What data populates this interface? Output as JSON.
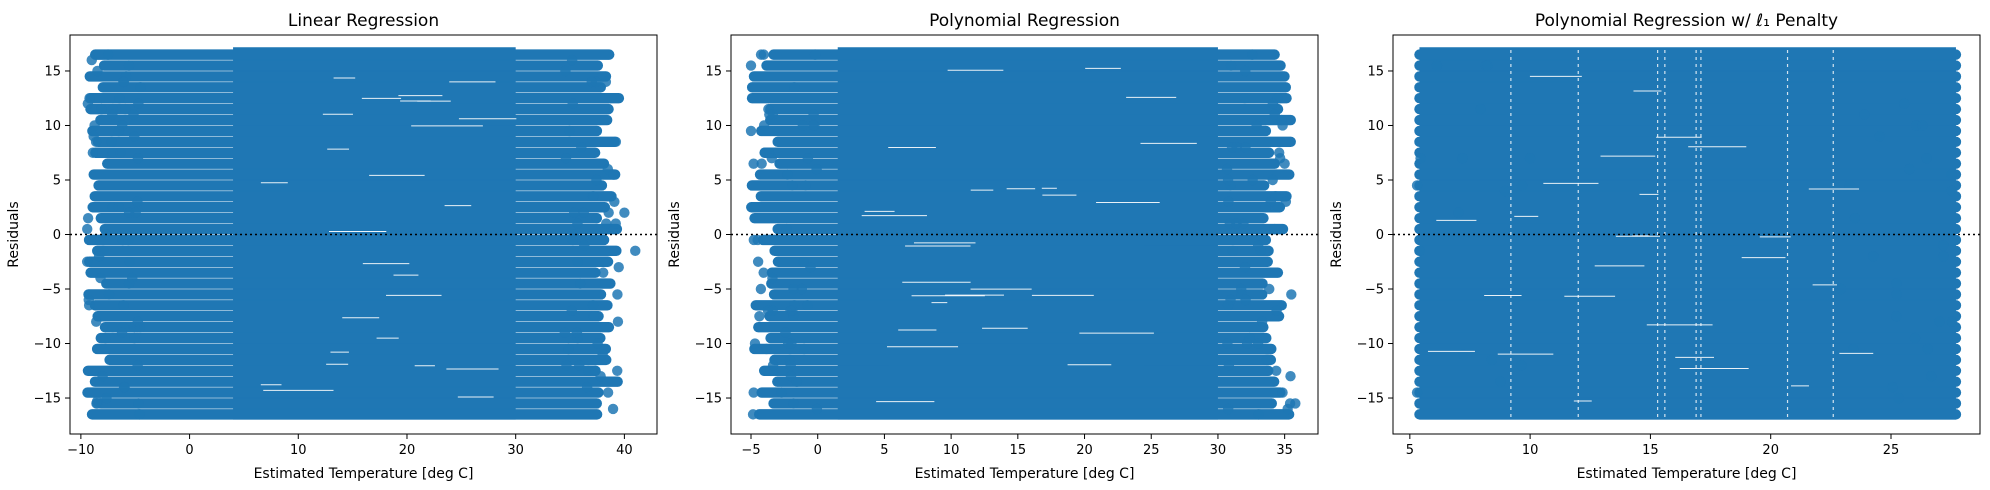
{
  "figure": {
    "background": "#ffffff"
  },
  "chart_data": [
    {
      "type": "scatter",
      "title": "Linear Regression",
      "xlabel": "Estimated Temperature [deg C]",
      "ylabel": "Residuals",
      "xlim": [
        -11,
        43
      ],
      "ylim": [
        -18.3,
        18.3
      ],
      "xticks": [
        -10,
        0,
        10,
        20,
        30,
        40
      ],
      "yticks": [
        -15,
        -10,
        -5,
        0,
        5,
        10,
        15
      ],
      "xtick_labels": [
        "−10",
        "0",
        "10",
        "20",
        "30",
        "40"
      ],
      "ytick_labels": [
        "−15",
        "−10",
        "−5",
        "0",
        "5",
        "10",
        "15"
      ],
      "reference_line": {
        "y": 0,
        "style": "dotted"
      },
      "grid": false,
      "marker_color": "#1f77b4",
      "dense_band": {
        "x": [
          -9.5,
          39.5
        ],
        "y": [
          -16.5,
          16.7
        ],
        "y_interval": 1.0
      },
      "core_band": {
        "x": [
          4,
          30
        ]
      },
      "outlier_points": [
        [
          -8.5,
          -15.3
        ],
        [
          -8.0,
          -13.0
        ],
        [
          -9.0,
          16.0
        ],
        [
          -7.5,
          16.5
        ],
        [
          38.5,
          -14.5
        ],
        [
          39.0,
          5.5
        ],
        [
          41.0,
          -1.5
        ],
        [
          40.0,
          2.0
        ],
        [
          37.0,
          14.0
        ],
        [
          -6.5,
          2.5
        ],
        [
          -5.5,
          -2.5
        ],
        [
          38.0,
          -11.0
        ]
      ]
    },
    {
      "type": "scatter",
      "title": "Polynomial Regression",
      "xlabel": "Estimated Temperature [deg C]",
      "ylabel": "Residuals",
      "xlim": [
        -6.5,
        37.5
      ],
      "ylim": [
        -18.3,
        18.3
      ],
      "xticks": [
        -5,
        0,
        5,
        10,
        15,
        20,
        25,
        30,
        35
      ],
      "yticks": [
        -15,
        -10,
        -5,
        0,
        5,
        10,
        15
      ],
      "xtick_labels": [
        "−5",
        "0",
        "5",
        "10",
        "15",
        "20",
        "25",
        "30",
        "35"
      ],
      "ytick_labels": [
        "−15",
        "−10",
        "−5",
        "0",
        "5",
        "10",
        "15"
      ],
      "reference_line": {
        "y": 0,
        "style": "dotted"
      },
      "grid": false,
      "marker_color": "#1f77b4",
      "dense_band": {
        "x": [
          -5,
          35.5
        ],
        "y": [
          -16.5,
          16.7
        ],
        "y_interval": 1.0
      },
      "core_band": {
        "x": [
          1.5,
          30
        ]
      },
      "outlier_points": [
        [
          -5.0,
          9.5
        ],
        [
          -4.8,
          -14.5
        ],
        [
          -5.0,
          15.5
        ],
        [
          35.5,
          -5.5
        ],
        [
          35.8,
          -15.5
        ],
        [
          35.0,
          6.5
        ],
        [
          -4.5,
          -0.5
        ],
        [
          34.5,
          2.5
        ]
      ]
    },
    {
      "type": "scatter",
      "title": "Polynomial Regression w/ ℓ₁ Penalty",
      "xlabel": "Estimated Temperature [deg C]",
      "ylabel": "Residuals",
      "xlim": [
        4.3,
        28.7
      ],
      "ylim": [
        -18.3,
        18.3
      ],
      "xticks": [
        5,
        10,
        15,
        20,
        25
      ],
      "yticks": [
        -15,
        -10,
        -5,
        0,
        5,
        10,
        15
      ],
      "xtick_labels": [
        "5",
        "10",
        "15",
        "20",
        "25"
      ],
      "ytick_labels": [
        "−15",
        "−10",
        "−5",
        "0",
        "5",
        "10",
        "15"
      ],
      "reference_line": {
        "y": 0,
        "style": "dotted"
      },
      "grid": false,
      "marker_color": "#1f77b4",
      "dense_band": {
        "x": [
          5.4,
          27.7
        ],
        "y": [
          -16.5,
          16.7
        ],
        "y_interval": 1.0
      },
      "core_band": {
        "x": [
          5.4,
          27.7
        ]
      },
      "outlier_points": [
        [
          5.3,
          -14.5
        ],
        [
          5.3,
          4.5
        ],
        [
          5.4,
          -1.5
        ]
      ]
    }
  ]
}
